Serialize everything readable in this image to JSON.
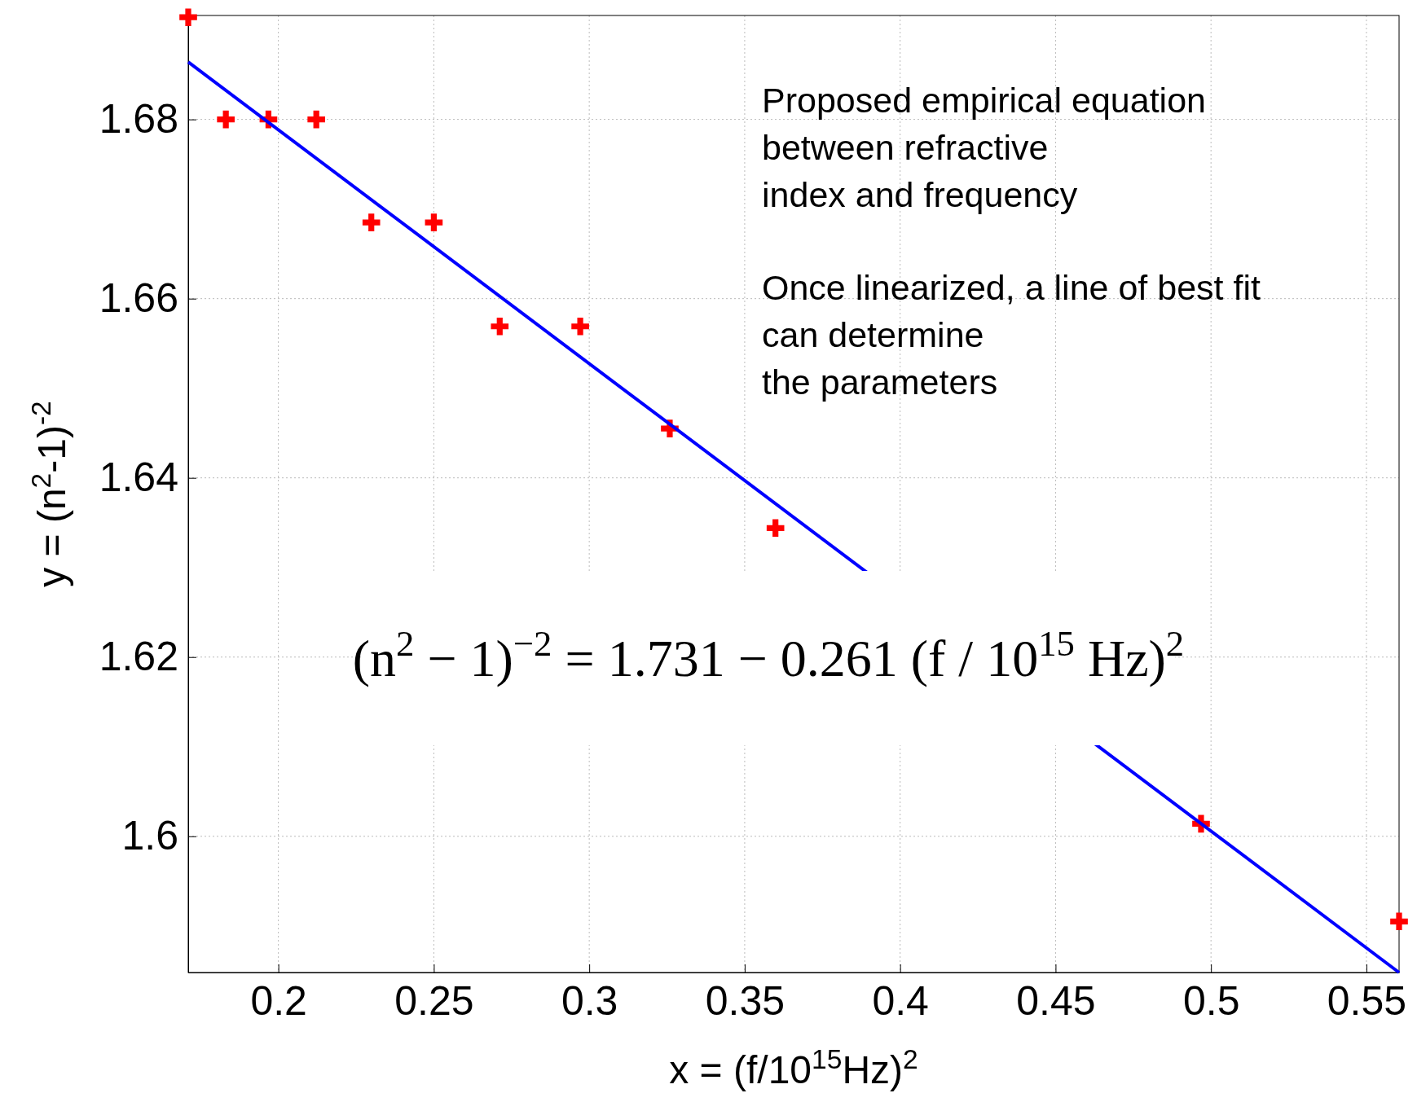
{
  "chart_data": {
    "type": "scatter",
    "xlabel": "x = (f/10$^{15}$Hz)$^{2}$",
    "ylabel": "y = (n$^{2}$-1)$^{-2}$",
    "xlim": [
      0.171,
      0.5605
    ],
    "ylim": [
      1.5848,
      1.6916
    ],
    "xticks": [
      0.2,
      0.25,
      0.3,
      0.35,
      0.4,
      0.45,
      0.5,
      0.55
    ],
    "yticks": [
      1.6,
      1.62,
      1.64,
      1.66,
      1.68
    ],
    "grid": true,
    "marker": "cross",
    "series": [
      {
        "color": "#ff0000",
        "x": [
          0.171,
          0.1831,
          0.1968,
          0.2122,
          0.2299,
          0.25,
          0.2712,
          0.2971,
          0.3259,
          0.3599,
          0.4968,
          0.5605
        ],
        "values": [
          1.6914,
          1.68,
          1.68,
          1.68,
          1.6685,
          1.6685,
          1.6569,
          1.6569,
          1.6455,
          1.6344,
          1.6014,
          1.5905
        ]
      },
      {
        "type": "line",
        "color": "#0000ff",
        "marker": "none",
        "x": [
          0.171,
          0.5605
        ],
        "values": [
          1.6864,
          1.5848
        ]
      }
    ],
    "annotations": [
      "Proposed empirical equation\nbetween refractive\nindex and frequency",
      "Once linearized, a line of best fit\ncan determine\nthe parameters",
      "(n$^{2}$ − 1)$^{−2}$ = 1.731 − 0.261 (f / 10$^{15}$ Hz)$^{2}$"
    ]
  }
}
